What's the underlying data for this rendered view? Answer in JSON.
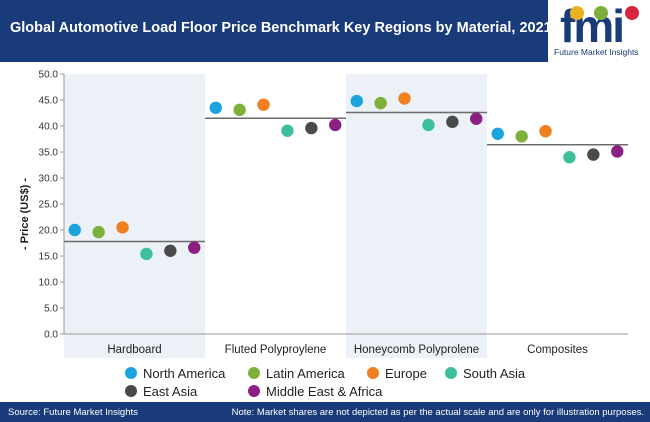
{
  "header": {
    "title": "Global Automotive Load Floor Price Benchmark Key Regions by Material, 2021",
    "logo_text": "Future Market Insights",
    "logo_letters": "fmi"
  },
  "chart_data": {
    "type": "scatter",
    "title": "Global Automotive Load Floor Price Benchmark Key Regions by Material, 2021",
    "xlabel": "",
    "ylabel": "- Price (US$) -",
    "ylim": [
      0,
      50
    ],
    "yticks": [
      "0.0",
      "5.0",
      "10.0",
      "15.0",
      "20.0",
      "25.0",
      "30.0",
      "35.0",
      "40.0",
      "45.0",
      "50.0"
    ],
    "grid": false,
    "legend_position": "bottom",
    "categories": [
      "Hardboard",
      "Fluted Polyproylene",
      "Honeycomb Polyprolene",
      "Composites"
    ],
    "benchmarks": [
      17.8,
      41.5,
      42.6,
      36.4
    ],
    "series": [
      {
        "name": "North America",
        "color": "#1aa3dc",
        "values": [
          20.0,
          43.5,
          44.8,
          38.5
        ]
      },
      {
        "name": "Latin America",
        "color": "#7db03a",
        "values": [
          19.6,
          43.1,
          44.4,
          38.0
        ]
      },
      {
        "name": "Europe",
        "color": "#f07f21",
        "values": [
          20.5,
          44.1,
          45.3,
          39.0
        ]
      },
      {
        "name": "South Asia",
        "color": "#3cbf9a",
        "values": [
          15.4,
          39.1,
          40.2,
          34.0
        ]
      },
      {
        "name": "East Asia",
        "color": "#4a4a4a",
        "values": [
          16.0,
          39.6,
          40.8,
          34.5
        ]
      },
      {
        "name": "Middle East & Africa",
        "color": "#8a1f84",
        "values": [
          16.6,
          40.2,
          41.4,
          35.1
        ]
      }
    ]
  },
  "colors": {
    "header_bg": "#1a3b7a",
    "band_shaded": "#ecf0f7",
    "band_plain": "#ffffff",
    "benchmark_line": "#6b6b6b",
    "logo_dot_colors": [
      "#e8b320",
      "#7db03a",
      "#d7263d"
    ]
  },
  "footer": {
    "source": "Source: Future Market Insights",
    "note": "Note: Market shares are not depicted as per the actual scale and are only for illustration purposes."
  }
}
